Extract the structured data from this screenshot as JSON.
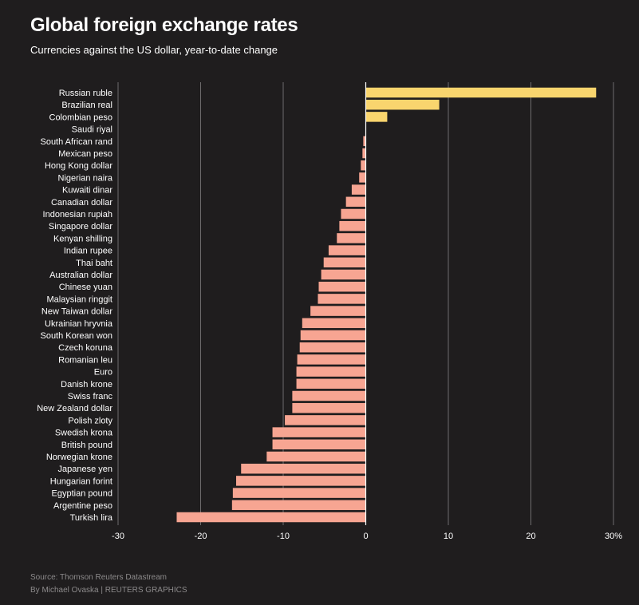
{
  "header": {
    "title": "Global foreign exchange rates",
    "subtitle": "Currencies against the US dollar, year-to-date change"
  },
  "footer": {
    "source": "Source: Thomson Reuters Datastream",
    "byline": "By Michael Ovaska | REUTERS GRAPHICS"
  },
  "colors": {
    "background": "#1f1d1e",
    "positive": "#f9d56e",
    "negative": "#f7a592",
    "grid": "#6e6c6d",
    "zero_line": "#ffffff",
    "text": "#ffffff"
  },
  "chart_data": {
    "type": "bar",
    "orientation": "horizontal",
    "title": "Global foreign exchange rates",
    "subtitle": "Currencies against the US dollar, year-to-date change",
    "xlabel": "",
    "ylabel": "",
    "xlim": [
      -30,
      30
    ],
    "xticks": [
      -30,
      -20,
      -10,
      0,
      10,
      20,
      30
    ],
    "xtick_labels": [
      "-30",
      "-20",
      "-10",
      "0",
      "10",
      "20",
      "30%"
    ],
    "grid": true,
    "categories": [
      "Russian ruble",
      "Brazilian real",
      "Colombian peso",
      "Saudi riyal",
      "South African rand",
      "Mexican peso",
      "Hong Kong dollar",
      "Nigerian naira",
      "Kuwaiti dinar",
      "Canadian dollar",
      "Indonesian rupiah",
      "Singapore dollar",
      "Kenyan shilling",
      "Indian rupee",
      "Thai baht",
      "Australian dollar",
      "Chinese yuan",
      "Malaysian ringgit",
      "New Taiwan dollar",
      "Ukrainian hryvnia",
      "South Korean won",
      "Czech koruna",
      "Romanian leu",
      "Euro",
      "Danish krone",
      "Swiss franc",
      "New Zealand dollar",
      "Polish zloty",
      "Swedish krona",
      "British pound",
      "Norwegian krone",
      "Japanese yen",
      "Hungarian forint",
      "Egyptian pound",
      "Argentine peso",
      "Turkish lira"
    ],
    "values": [
      27.9,
      8.9,
      2.6,
      0.0,
      -0.3,
      -0.4,
      -0.6,
      -0.8,
      -1.7,
      -2.4,
      -3.0,
      -3.2,
      -3.5,
      -4.5,
      -5.1,
      -5.4,
      -5.7,
      -5.8,
      -6.7,
      -7.7,
      -7.9,
      -8.0,
      -8.3,
      -8.4,
      -8.4,
      -8.9,
      -8.9,
      -9.8,
      -11.3,
      -11.3,
      -12.0,
      -15.1,
      -15.7,
      -16.1,
      -16.2,
      -22.9
    ]
  }
}
